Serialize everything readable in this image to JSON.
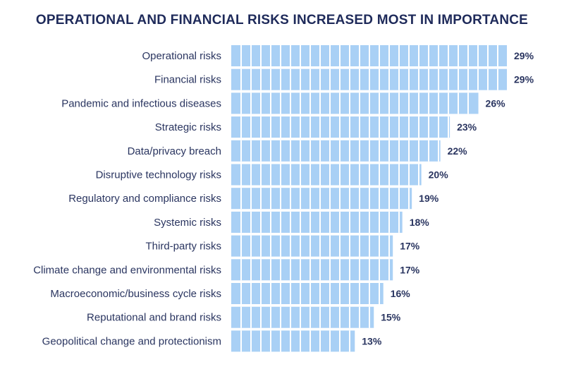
{
  "chart_data": {
    "type": "bar",
    "orientation": "horizontal",
    "title": "OPERATIONAL AND FINANCIAL RISKS INCREASED MOST IN IMPORTANCE",
    "categories": [
      "Operational risks",
      "Financial risks",
      "Pandemic and infectious diseases",
      "Strategic risks",
      "Data/privacy breach",
      "Disruptive technology risks",
      "Regulatory and compliance risks",
      "Systemic risks",
      "Third-party risks",
      "Climate change and environmental risks",
      "Macroeconomic/business cycle risks",
      "Reputational and brand risks",
      "Geopolitical change and protectionism"
    ],
    "values": [
      29,
      29,
      26,
      23,
      22,
      20,
      19,
      18,
      17,
      17,
      16,
      15,
      13
    ],
    "value_labels": [
      "29%",
      "29%",
      "26%",
      "23%",
      "22%",
      "20%",
      "19%",
      "18%",
      "17%",
      "17%",
      "16%",
      "15%",
      "13%"
    ],
    "unit": "%",
    "xlim": [
      0,
      29
    ],
    "grid": false,
    "legend": "none",
    "colors": {
      "bar": "#a9d0f5",
      "bar_segment_line": "#ffffff",
      "text": "#2a3560",
      "title": "#1e2a5a"
    }
  }
}
